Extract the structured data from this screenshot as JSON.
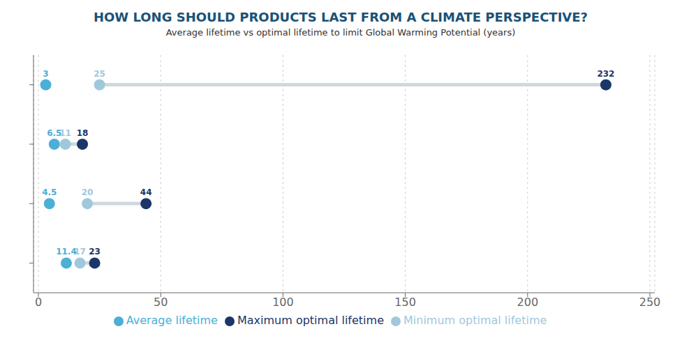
{
  "chart_data": {
    "type": "dumbbell",
    "title": "HOW LONG SHOULD PRODUCTS LAST FROM A CLIMATE PERSPECTIVE?",
    "subtitle": "Average lifetime vs optimal lifetime to limit Global Warming Potential (years)",
    "orientation": "horizontal",
    "categories": [
      null,
      null,
      null,
      null
    ],
    "series": [
      {
        "name": "Average lifetime",
        "color": "#4bafd6",
        "values": [
          3,
          6.5,
          4.5,
          11.4
        ]
      },
      {
        "name": "Minimum optimal lifetime",
        "color": "#a0c8dc",
        "values": [
          25,
          11,
          20,
          17
        ]
      },
      {
        "name": "Maximum optimal lifetime",
        "color": "#1b3668",
        "values": [
          232,
          18,
          44,
          23
        ]
      }
    ],
    "xlim": [
      -2,
      252
    ],
    "xticks": [
      0,
      50,
      100,
      150,
      200,
      250
    ],
    "grid": true,
    "data_labels": true,
    "legend": "bottom"
  }
}
